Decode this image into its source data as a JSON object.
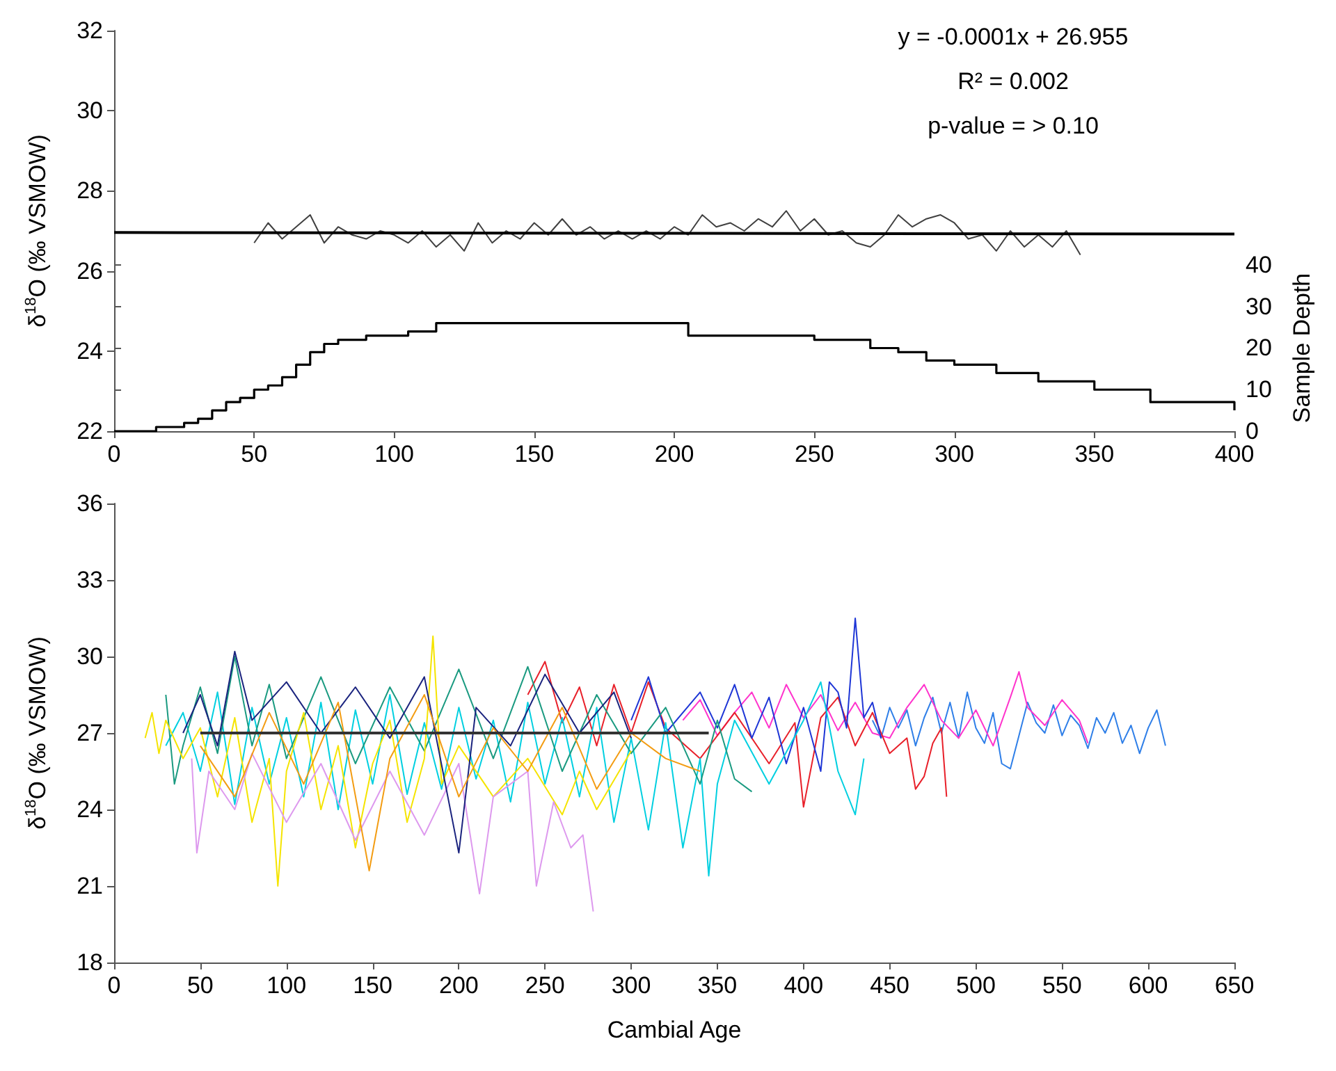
{
  "chart_data": [
    {
      "type": "line",
      "ylabel": "δ$^{18}$O (‰ VSMOW)",
      "y2label": "Sample Depth",
      "annotations": [
        "y = -0.0001x + 26.955",
        "R² = 0.002",
        "p-value = > 0.10"
      ],
      "xlim": [
        0,
        400
      ],
      "xticks": [
        0,
        50,
        100,
        150,
        200,
        250,
        300,
        350,
        400
      ],
      "ylim": [
        22,
        32
      ],
      "yticks": [
        22,
        24,
        26,
        28,
        30,
        32
      ],
      "y2lim": [
        0,
        40
      ],
      "y2ticks": [
        0,
        10,
        20,
        30,
        40
      ],
      "marker": "none",
      "line_style": "solid",
      "series": [
        {
          "color": "#404040",
          "x": [
            50,
            55,
            60,
            65,
            70,
            75,
            80,
            85,
            90,
            95,
            100,
            105,
            110,
            115,
            120,
            125,
            130,
            135,
            140,
            145,
            150,
            155,
            160,
            165,
            170,
            175,
            180,
            185,
            190,
            195,
            200,
            205,
            210,
            215,
            220,
            225,
            230,
            235,
            240,
            245,
            250,
            255,
            260,
            265,
            270,
            275,
            280,
            285,
            290,
            295,
            300,
            305,
            310,
            315,
            320,
            325,
            330,
            335,
            340,
            345
          ],
          "values": [
            26.7,
            27.2,
            26.8,
            27.1,
            27.4,
            26.7,
            27.1,
            26.9,
            26.8,
            27.0,
            26.9,
            26.7,
            27.0,
            26.6,
            26.9,
            26.5,
            27.2,
            26.7,
            27.0,
            26.8,
            27.2,
            26.9,
            27.3,
            26.9,
            27.1,
            26.8,
            27.0,
            26.8,
            27.0,
            26.8,
            27.1,
            26.9,
            27.4,
            27.1,
            27.2,
            27.0,
            27.3,
            27.1,
            27.5,
            27.0,
            27.3,
            26.9,
            27.0,
            26.7,
            26.6,
            26.9,
            27.4,
            27.1,
            27.3,
            27.4,
            27.2,
            26.8,
            26.9,
            26.5,
            27.0,
            26.6,
            26.9,
            26.6,
            27.0,
            26.4
          ]
        },
        {
          "type": "line",
          "color": "#000000",
          "x": [
            0,
            400
          ],
          "values": [
            26.96,
            26.92
          ]
        },
        {
          "type": "step",
          "axis": "y2",
          "color": "#000000",
          "x": [
            0,
            15,
            25,
            30,
            35,
            40,
            45,
            50,
            55,
            60,
            65,
            70,
            75,
            80,
            90,
            105,
            115,
            200,
            205,
            250,
            270,
            280,
            290,
            300,
            315,
            330,
            350,
            370,
            400
          ],
          "values": [
            0,
            1,
            2,
            3,
            5,
            7,
            8,
            10,
            11,
            13,
            16,
            19,
            21,
            22,
            23,
            24,
            26,
            26,
            23,
            22,
            20,
            19,
            17,
            16,
            14,
            12,
            10,
            7,
            5
          ]
        }
      ]
    },
    {
      "type": "line",
      "xlabel": "Cambial Age",
      "ylabel": "δ$^{18}$O (‰ VSMOW)",
      "xlim": [
        0,
        650
      ],
      "xticks": [
        0,
        50,
        100,
        150,
        200,
        250,
        300,
        350,
        400,
        450,
        500,
        550,
        600,
        650
      ],
      "ylim": [
        18,
        36
      ],
      "yticks": [
        18,
        21,
        24,
        27,
        30,
        33,
        36
      ],
      "marker": "none",
      "line_style": "solid",
      "series": [
        {
          "color": "#2f7fe8",
          "x": [
            440,
            445,
            450,
            455,
            460,
            465,
            470,
            475,
            480,
            485,
            490,
            495,
            500,
            505,
            510,
            515,
            520,
            525,
            530,
            535,
            540,
            545,
            550,
            555,
            560,
            565,
            570,
            575,
            580,
            585,
            590,
            595,
            600,
            605,
            610
          ],
          "values": [
            27.5,
            26.8,
            28.0,
            27.2,
            27.9,
            26.5,
            27.6,
            28.4,
            27.0,
            28.2,
            26.8,
            28.6,
            27.2,
            26.6,
            27.8,
            25.8,
            25.6,
            26.9,
            28.2,
            27.4,
            27.0,
            28.1,
            26.9,
            27.7,
            27.3,
            26.4,
            27.6,
            27.0,
            27.8,
            26.6,
            27.3,
            26.2,
            27.2,
            27.9,
            26.5
          ]
        },
        {
          "color": "#ff33cc",
          "x": [
            330,
            340,
            350,
            360,
            370,
            380,
            390,
            400,
            410,
            420,
            430,
            440,
            450,
            460,
            470,
            480,
            490,
            500,
            510,
            520,
            525,
            530,
            540,
            550,
            560,
            565
          ],
          "values": [
            27.5,
            28.3,
            26.9,
            27.8,
            28.6,
            27.2,
            28.9,
            27.6,
            28.5,
            27.1,
            28.2,
            27.0,
            26.8,
            28.0,
            28.9,
            27.5,
            26.8,
            27.9,
            26.5,
            28.4,
            29.4,
            28.0,
            27.3,
            28.3,
            27.5,
            26.6
          ]
        },
        {
          "color": "#e8202a",
          "x": [
            240,
            250,
            260,
            270,
            280,
            290,
            300,
            310,
            320,
            340,
            360,
            380,
            395,
            400,
            410,
            420,
            430,
            440,
            450,
            460,
            465,
            470,
            475,
            480,
            483
          ],
          "values": [
            28.5,
            29.8,
            27.4,
            28.8,
            26.5,
            28.9,
            27.0,
            29.0,
            27.2,
            26.0,
            27.8,
            25.8,
            27.4,
            24.1,
            27.6,
            28.4,
            26.5,
            27.8,
            26.2,
            26.8,
            24.8,
            25.3,
            26.6,
            27.2,
            24.5
          ]
        },
        {
          "color": "#1e36d6",
          "x": [
            300,
            310,
            320,
            340,
            350,
            360,
            370,
            380,
            390,
            400,
            410,
            415,
            420,
            425,
            430,
            435,
            440,
            445
          ],
          "values": [
            27.5,
            29.2,
            27.0,
            28.6,
            27.2,
            28.9,
            26.8,
            28.4,
            25.8,
            28.0,
            25.5,
            29.0,
            28.6,
            27.2,
            31.5,
            27.6,
            28.2,
            26.8
          ]
        },
        {
          "color": "#00cfe0",
          "x": [
            30,
            40,
            50,
            60,
            70,
            80,
            90,
            100,
            110,
            120,
            130,
            140,
            150,
            160,
            170,
            180,
            190,
            200,
            210,
            220,
            230,
            240,
            250,
            260,
            270,
            280,
            290,
            300,
            310,
            320,
            330,
            340,
            345,
            350,
            360,
            380,
            400,
            410,
            420,
            430,
            435
          ],
          "values": [
            26.5,
            27.8,
            25.5,
            28.6,
            24.2,
            28.0,
            25.0,
            27.6,
            24.5,
            28.2,
            24.0,
            27.9,
            25.0,
            28.5,
            24.6,
            27.4,
            24.8,
            28.0,
            25.2,
            27.5,
            24.3,
            28.2,
            25.0,
            27.6,
            24.5,
            28.0,
            23.5,
            26.8,
            23.2,
            27.4,
            22.5,
            26.0,
            21.4,
            25.0,
            27.5,
            25.0,
            27.5,
            29.0,
            25.5,
            23.8,
            26.0
          ]
        },
        {
          "color": "#1a9a80",
          "x": [
            30,
            35,
            40,
            50,
            60,
            70,
            80,
            90,
            100,
            120,
            140,
            160,
            180,
            200,
            220,
            240,
            260,
            280,
            300,
            320,
            340,
            350,
            360,
            370
          ],
          "values": [
            28.5,
            25.0,
            26.5,
            28.8,
            26.2,
            30.0,
            26.5,
            28.9,
            26.0,
            29.2,
            25.8,
            28.8,
            26.3,
            29.5,
            26.0,
            29.6,
            25.5,
            28.5,
            26.2,
            28.0,
            25.0,
            27.5,
            25.2,
            24.7
          ]
        },
        {
          "color": "#f5e400",
          "x": [
            18,
            22,
            26,
            30,
            40,
            50,
            60,
            70,
            80,
            90,
            95,
            100,
            110,
            120,
            130,
            140,
            150,
            160,
            170,
            180,
            185,
            190,
            200,
            220,
            240,
            260,
            270,
            280,
            300
          ],
          "values": [
            26.8,
            27.8,
            26.2,
            27.5,
            26.0,
            27.2,
            24.5,
            27.6,
            23.5,
            26.0,
            21.0,
            25.5,
            27.8,
            24.0,
            26.5,
            22.5,
            25.8,
            27.5,
            23.5,
            26.0,
            30.8,
            25.0,
            26.5,
            24.5,
            26.0,
            23.8,
            25.5,
            24.0,
            26.3
          ]
        },
        {
          "color": "#dd99ee",
          "x": [
            45,
            48,
            55,
            70,
            80,
            100,
            120,
            140,
            160,
            180,
            200,
            212,
            220,
            240,
            245,
            255,
            265,
            272,
            278
          ],
          "values": [
            26.0,
            22.3,
            25.5,
            24.0,
            26.2,
            23.5,
            25.8,
            22.8,
            25.5,
            23.0,
            25.8,
            20.7,
            24.5,
            25.5,
            21.0,
            24.3,
            22.5,
            23.0,
            20.0
          ]
        },
        {
          "color": "#1a237e",
          "x": [
            40,
            50,
            60,
            70,
            80,
            100,
            120,
            140,
            160,
            180,
            200,
            210,
            230,
            250,
            270,
            290,
            300
          ],
          "values": [
            27.0,
            28.5,
            26.5,
            30.2,
            27.5,
            29.0,
            27.0,
            28.8,
            26.8,
            29.2,
            22.3,
            28.0,
            26.5,
            29.3,
            27.0,
            28.6,
            26.8
          ]
        },
        {
          "color": "#f39c12",
          "x": [
            50,
            70,
            90,
            110,
            130,
            148,
            160,
            180,
            200,
            220,
            240,
            260,
            280,
            300,
            320,
            340
          ],
          "values": [
            26.5,
            24.5,
            27.8,
            25.0,
            28.2,
            21.6,
            26.0,
            28.5,
            24.5,
            27.2,
            25.5,
            28.0,
            24.8,
            27.0,
            26.0,
            25.5
          ]
        },
        {
          "color": "#333333",
          "x": [
            50,
            345
          ],
          "values": [
            27.0,
            27.0
          ]
        }
      ]
    }
  ]
}
